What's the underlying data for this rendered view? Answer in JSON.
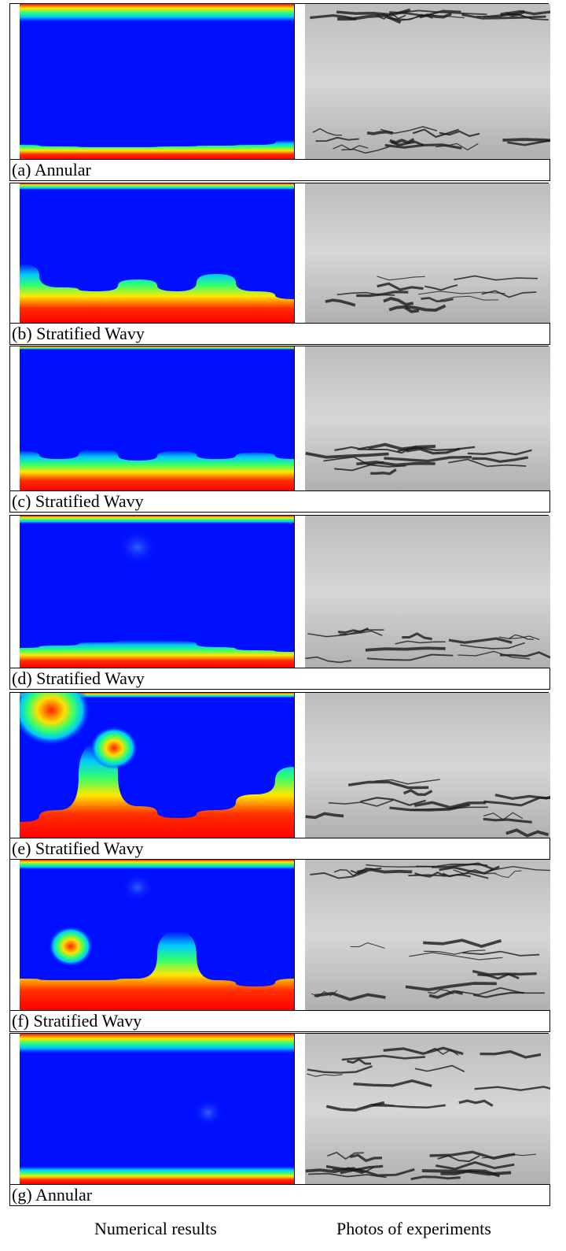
{
  "panels": [
    {
      "caption": "(a) Annular"
    },
    {
      "caption": "(b) Stratified Wavy"
    },
    {
      "caption": "(c) Stratified Wavy"
    },
    {
      "caption": "(d) Stratified Wavy"
    },
    {
      "caption": "(e) Stratified Wavy"
    },
    {
      "caption": "(f) Stratified Wavy"
    },
    {
      "caption": "(g) Annular"
    }
  ],
  "column_labels": [
    "Numerical results",
    "Photos of experiments"
  ]
}
